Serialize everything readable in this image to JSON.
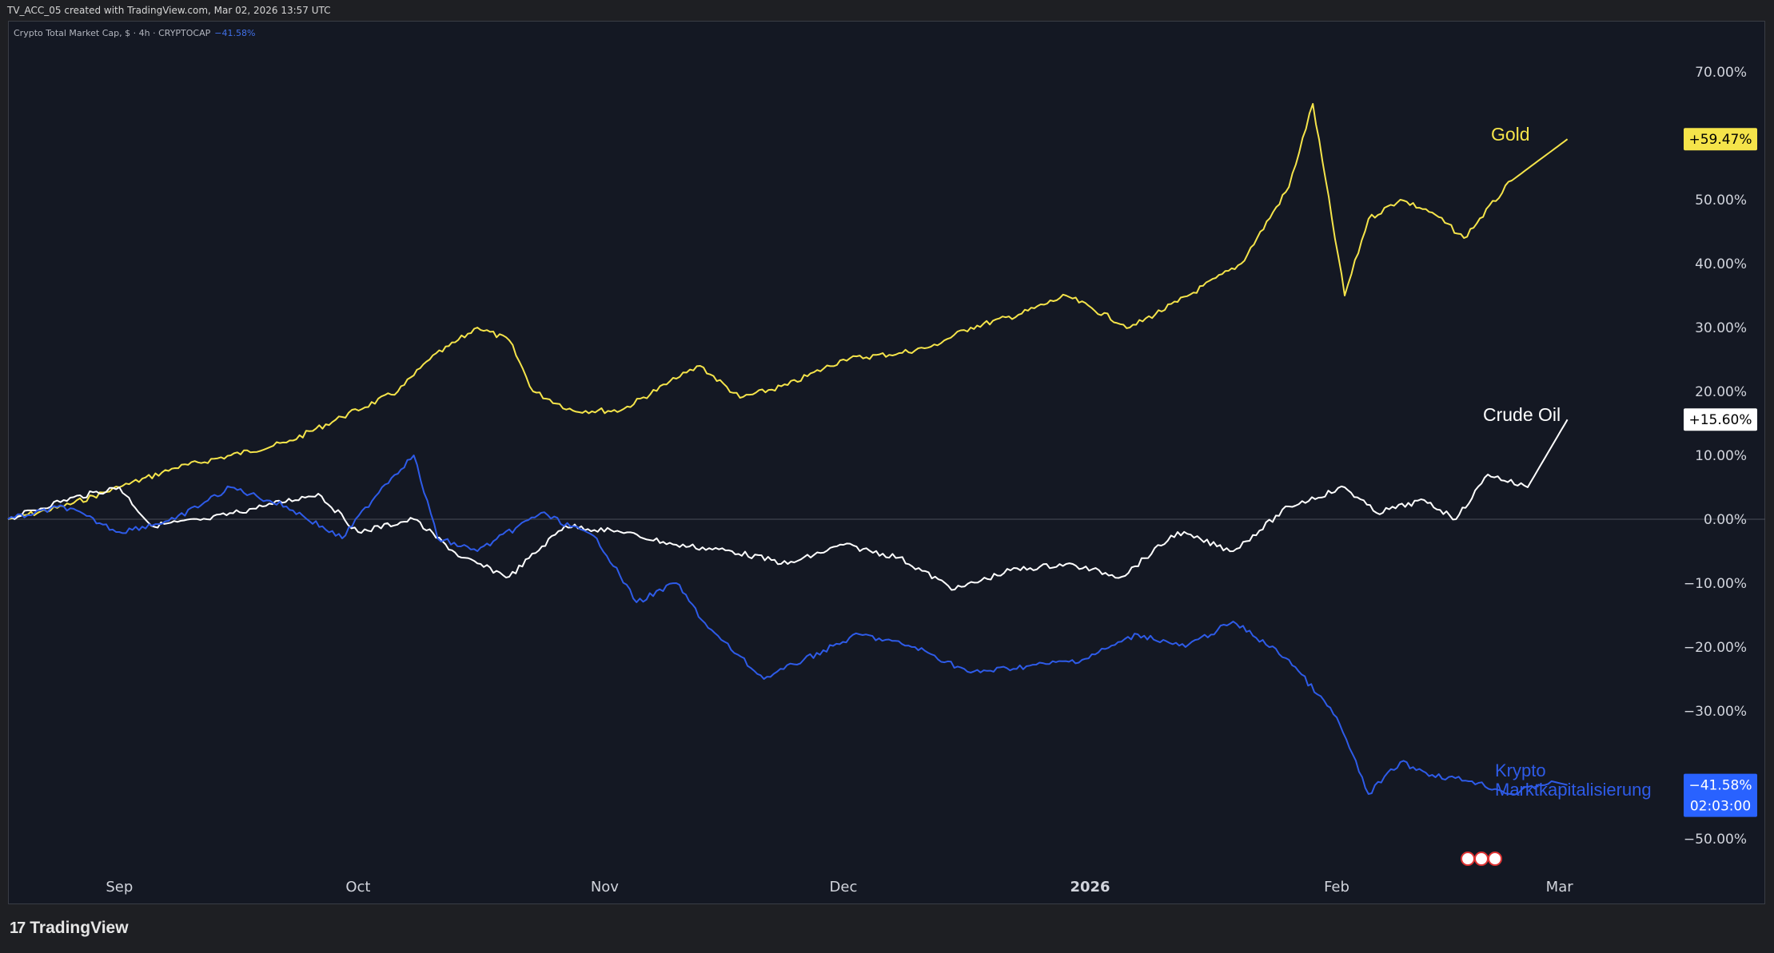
{
  "header": {
    "watermark": "TV_ACC_05 created with TradingView.com, Mar 02, 2026 13:57 UTC"
  },
  "legend": {
    "symbol": "Crypto Total Market Cap, $ · 4h · CRYPTOCAP",
    "change": "−41.58%"
  },
  "footer": {
    "brand": "TradingView",
    "logo_icon": "tradingview-logo-icon"
  },
  "colors": {
    "gold": "#f5e44a",
    "oil": "#ffffff",
    "crypto": "#2e5be8",
    "background": "#141823"
  },
  "chart_data": {
    "type": "line",
    "title": "",
    "xlabel": "",
    "ylabel": "",
    "ylim": [
      -55,
      75
    ],
    "y_ticks": [
      "70.00%",
      "50.00%",
      "40.00%",
      "30.00%",
      "20.00%",
      "10.00%",
      "0.00%",
      "−10.00%",
      "−20.00%",
      "−30.00%",
      "−50.00%"
    ],
    "x_ticks": [
      "Sep",
      "Oct",
      "Nov",
      "Dec",
      "2026",
      "Feb",
      "Mar"
    ],
    "x_tick_dates": [
      "2025-09-01",
      "2025-10-01",
      "2025-11-01",
      "2025-12-01",
      "2026-01-01",
      "2026-02-01",
      "2026-03-01"
    ],
    "grid": true,
    "series": [
      {
        "name": "Gold",
        "color": "#f5e44a",
        "last_label": "+59.47%",
        "x": [
          "2025-08-18",
          "2025-08-25",
          "2025-09-01",
          "2025-09-08",
          "2025-09-15",
          "2025-09-22",
          "2025-09-29",
          "2025-10-06",
          "2025-10-10",
          "2025-10-16",
          "2025-10-20",
          "2025-10-23",
          "2025-10-28",
          "2025-11-03",
          "2025-11-10",
          "2025-11-13",
          "2025-11-18",
          "2025-11-24",
          "2025-12-01",
          "2025-12-08",
          "2025-12-12",
          "2025-12-17",
          "2025-12-23",
          "2025-12-29",
          "2026-01-06",
          "2026-01-12",
          "2026-01-20",
          "2026-01-26",
          "2026-01-29",
          "2026-02-02",
          "2026-02-05",
          "2026-02-09",
          "2026-02-13",
          "2026-02-17",
          "2026-02-23",
          "2026-03-02"
        ],
        "y": [
          0,
          2,
          5,
          8,
          10,
          12,
          16,
          20,
          25,
          30,
          28,
          20,
          17,
          17,
          22,
          24,
          19,
          21,
          25,
          26,
          27,
          30,
          32,
          35,
          30,
          34,
          40,
          52,
          65,
          35,
          47,
          50,
          48,
          44,
          53,
          59.47
        ]
      },
      {
        "name": "Crude Oil",
        "color": "#ffffff",
        "last_label": "+15.60%",
        "x": [
          "2025-08-18",
          "2025-08-25",
          "2025-09-01",
          "2025-09-05",
          "2025-09-12",
          "2025-09-19",
          "2025-09-26",
          "2025-10-01",
          "2025-10-08",
          "2025-10-14",
          "2025-10-20",
          "2025-10-27",
          "2025-11-03",
          "2025-11-10",
          "2025-11-17",
          "2025-11-24",
          "2025-12-01",
          "2025-12-08",
          "2025-12-15",
          "2025-12-22",
          "2025-12-29",
          "2026-01-05",
          "2026-01-12",
          "2026-01-19",
          "2026-01-26",
          "2026-02-02",
          "2026-02-06",
          "2026-02-12",
          "2026-02-16",
          "2026-02-20",
          "2026-02-25",
          "2026-03-02"
        ],
        "y": [
          0,
          3,
          5,
          -1,
          0,
          2,
          4,
          -2,
          0,
          -6,
          -9,
          -1,
          -2,
          -4,
          -5,
          -7,
          -4,
          -6,
          -11,
          -8,
          -7,
          -9,
          -2,
          -5,
          2,
          5,
          1,
          3,
          0,
          7,
          5,
          15.6
        ]
      },
      {
        "name": "Krypto Marktkapitalisierung",
        "color": "#2e5be8",
        "last_label": "−41.58%",
        "timer": "02:03:00",
        "x": [
          "2025-08-18",
          "2025-08-25",
          "2025-09-01",
          "2025-09-08",
          "2025-09-15",
          "2025-09-22",
          "2025-09-29",
          "2025-10-04",
          "2025-10-08",
          "2025-10-11",
          "2025-10-16",
          "2025-10-24",
          "2025-10-31",
          "2025-11-05",
          "2025-11-10",
          "2025-11-14",
          "2025-11-21",
          "2025-11-26",
          "2025-12-03",
          "2025-12-10",
          "2025-12-17",
          "2025-12-24",
          "2025-12-31",
          "2026-01-07",
          "2026-01-13",
          "2026-01-19",
          "2026-01-26",
          "2026-02-01",
          "2026-02-05",
          "2026-02-09",
          "2026-02-13",
          "2026-02-18",
          "2026-02-23",
          "2026-02-28",
          "2026-03-02"
        ],
        "y": [
          0,
          2,
          -2,
          0,
          5,
          2,
          -3,
          5,
          10,
          -3,
          -5,
          1,
          -3,
          -13,
          -10,
          -17,
          -25,
          -22,
          -18,
          -20,
          -24,
          -23,
          -22,
          -18,
          -20,
          -16,
          -22,
          -31,
          -43,
          -38,
          -40,
          -41,
          -43,
          -41,
          -41.58
        ]
      }
    ]
  }
}
